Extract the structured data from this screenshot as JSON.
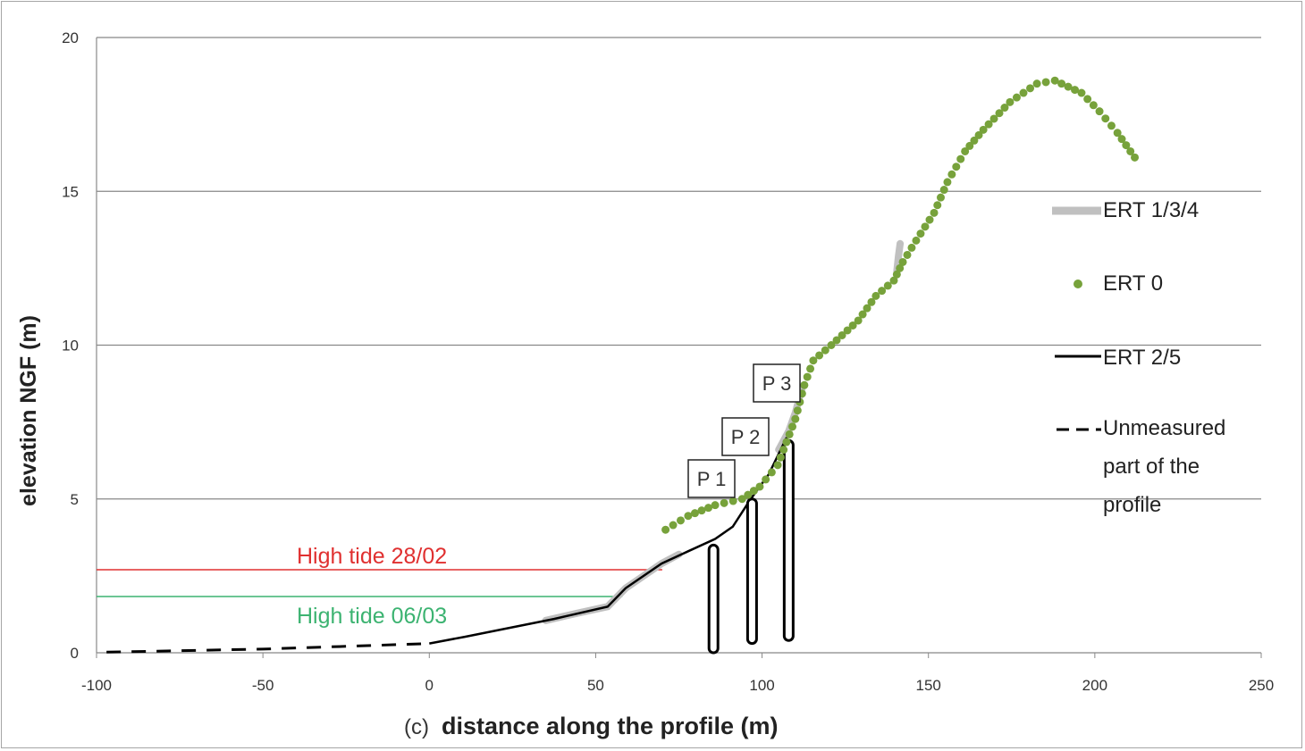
{
  "chart_data": {
    "type": "line",
    "title": "",
    "xlabel": "distance along the profile (m)",
    "panel_label": "(c)",
    "ylabel": "elevation NGF (m)",
    "xlim": [
      -100,
      250
    ],
    "ylim": [
      0,
      20
    ],
    "xticks": [
      "-100",
      "-50",
      "0",
      "50",
      "100",
      "150",
      "200",
      "250"
    ],
    "yticks": [
      "0",
      "5",
      "10",
      "15",
      "20"
    ],
    "grid": "horizontal",
    "legend_position": "right",
    "series": [
      {
        "name": "ERT 1/3/4",
        "style": "thick-gray-line",
        "color": "#c0c0c0",
        "segments": [
          [
            [
              35,
              1.05
            ],
            [
              45,
              1.3
            ],
            [
              53.6,
              1.5
            ],
            [
              59,
              2.1
            ],
            [
              69.8,
              2.9
            ],
            [
              75,
              3.2
            ]
          ],
          [
            [
              105,
              6.6
            ],
            [
              108,
              7.2
            ],
            [
              110,
              7.8
            ],
            [
              112,
              8.6
            ]
          ],
          [
            [
              140.5,
              12.4
            ],
            [
              141,
              12.9
            ],
            [
              141.5,
              13.3
            ]
          ]
        ]
      },
      {
        "name": "ERT 0",
        "style": "dots",
        "color": "#77a23b",
        "points": [
          [
            71,
            4.0
          ],
          [
            77.8,
            4.45
          ],
          [
            85.9,
            4.8
          ],
          [
            94,
            5.0
          ],
          [
            99.3,
            5.4
          ],
          [
            104.7,
            6.1
          ],
          [
            110,
            7.6
          ],
          [
            112.7,
            8.7
          ],
          [
            115.4,
            9.5
          ],
          [
            120.8,
            10.0
          ],
          [
            128.9,
            10.8
          ],
          [
            134.2,
            11.6
          ],
          [
            139.6,
            12.1
          ],
          [
            142.3,
            12.7
          ],
          [
            146.3,
            13.4
          ],
          [
            151.7,
            14.3
          ],
          [
            155.7,
            15.3
          ],
          [
            161,
            16.3
          ],
          [
            166.5,
            17.0
          ],
          [
            174.5,
            17.9
          ],
          [
            182.6,
            18.5
          ],
          [
            188,
            18.6
          ],
          [
            196,
            18.2
          ],
          [
            201.4,
            17.6
          ],
          [
            206.8,
            16.9
          ],
          [
            212,
            16.1
          ]
        ]
      },
      {
        "name": "ERT 2/5",
        "style": "black-line",
        "color": "#000000",
        "points": [
          [
            0,
            0.3
          ],
          [
            10.7,
            0.52
          ],
          [
            21.4,
            0.75
          ],
          [
            37.5,
            1.1
          ],
          [
            53.6,
            1.5
          ],
          [
            59,
            2.1
          ],
          [
            69.8,
            2.9
          ],
          [
            77.8,
            3.3
          ],
          [
            85.9,
            3.7
          ],
          [
            91.2,
            4.1
          ],
          [
            96.6,
            5.0
          ],
          [
            102,
            5.8
          ],
          [
            107.4,
            7.0
          ]
        ]
      },
      {
        "name": "Unmeasured part of the profile",
        "style": "dashed-line",
        "color": "#000000",
        "points": [
          [
            -97,
            0.02
          ],
          [
            -50,
            0.12
          ],
          [
            0,
            0.3
          ]
        ]
      }
    ],
    "tide_lines": [
      {
        "label": "High tide 28/02",
        "elevation": 2.7,
        "x_range": [
          -100,
          70
        ],
        "color": "#e03030"
      },
      {
        "label": "High tide 06/03",
        "elevation": 1.83,
        "x_range": [
          -100,
          58
        ],
        "color": "#3cb371"
      }
    ],
    "piezometers": [
      {
        "label": "P 1",
        "x": 85.4,
        "top": 3.5,
        "bottom": 0
      },
      {
        "label": "P 2",
        "x": 97,
        "top": 5.0,
        "bottom": 0.3
      },
      {
        "label": "P 3",
        "x": 108,
        "top": 6.9,
        "bottom": 0.4
      }
    ],
    "legend": [
      "ERT 1/3/4",
      "ERT 0",
      "ERT 2/5",
      "Unmeasured part of the profile"
    ]
  }
}
